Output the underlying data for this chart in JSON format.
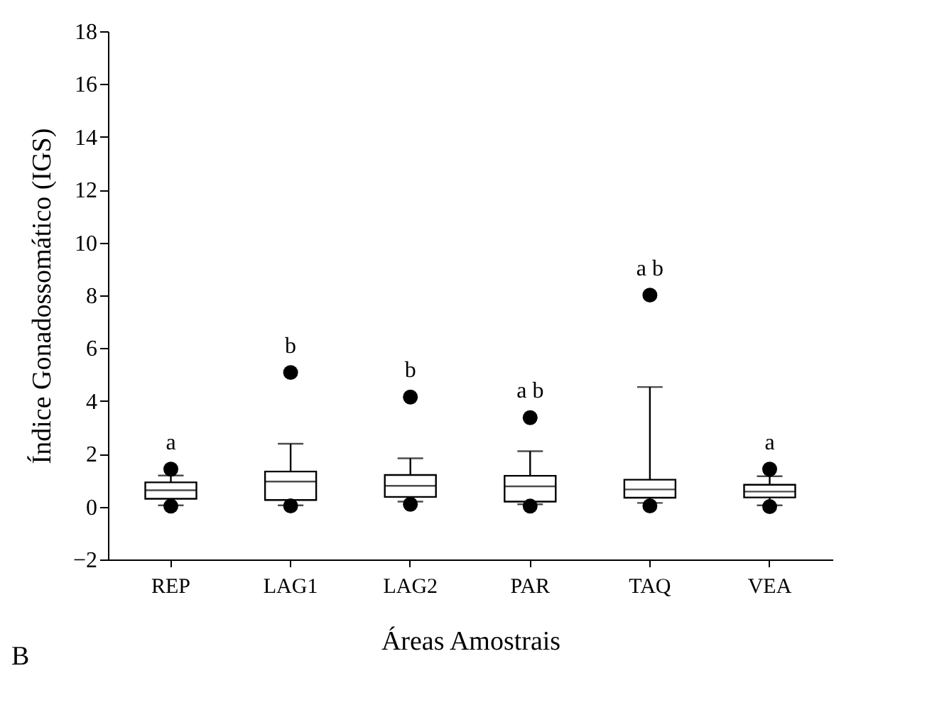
{
  "chart_data": {
    "type": "box",
    "categories": [
      "REP",
      "LAG1",
      "LAG2",
      "PAR",
      "TAQ",
      "VEA"
    ],
    "boxes": [
      {
        "low": 0.05,
        "q1": 0.3,
        "median": 0.62,
        "q3": 0.92,
        "high": 1.18,
        "outliers": [
          1.42,
          0.02
        ]
      },
      {
        "low": 0.05,
        "q1": 0.25,
        "median": 0.95,
        "q3": 1.33,
        "high": 2.38,
        "outliers": [
          5.08,
          0.03
        ]
      },
      {
        "low": 0.19,
        "q1": 0.37,
        "median": 0.79,
        "q3": 1.2,
        "high": 1.83,
        "outliers": [
          4.15,
          0.09
        ]
      },
      {
        "low": 0.09,
        "q1": 0.19,
        "median": 0.77,
        "q3": 1.17,
        "high": 2.1,
        "outliers": [
          3.37,
          0.02
        ]
      },
      {
        "low": 0.14,
        "q1": 0.34,
        "median": 0.65,
        "q3": 1.02,
        "high": 4.53,
        "outliers": [
          8.01,
          0.03
        ]
      },
      {
        "low": 0.05,
        "q1": 0.35,
        "median": 0.57,
        "q3": 0.83,
        "high": 1.15,
        "outliers": [
          1.42,
          0.0
        ]
      }
    ],
    "xlabel": "Áreas Amostrais",
    "ylabel": "Índice Gonadossomático (IGS)",
    "ylim": [
      -2,
      18
    ],
    "yticks": [
      -2,
      0,
      2,
      4,
      6,
      8,
      10,
      12,
      14,
      16,
      18
    ],
    "grid": false,
    "annotations": [
      "a",
      "b",
      "b",
      "a b",
      "a b",
      "a",
      "B"
    ]
  }
}
